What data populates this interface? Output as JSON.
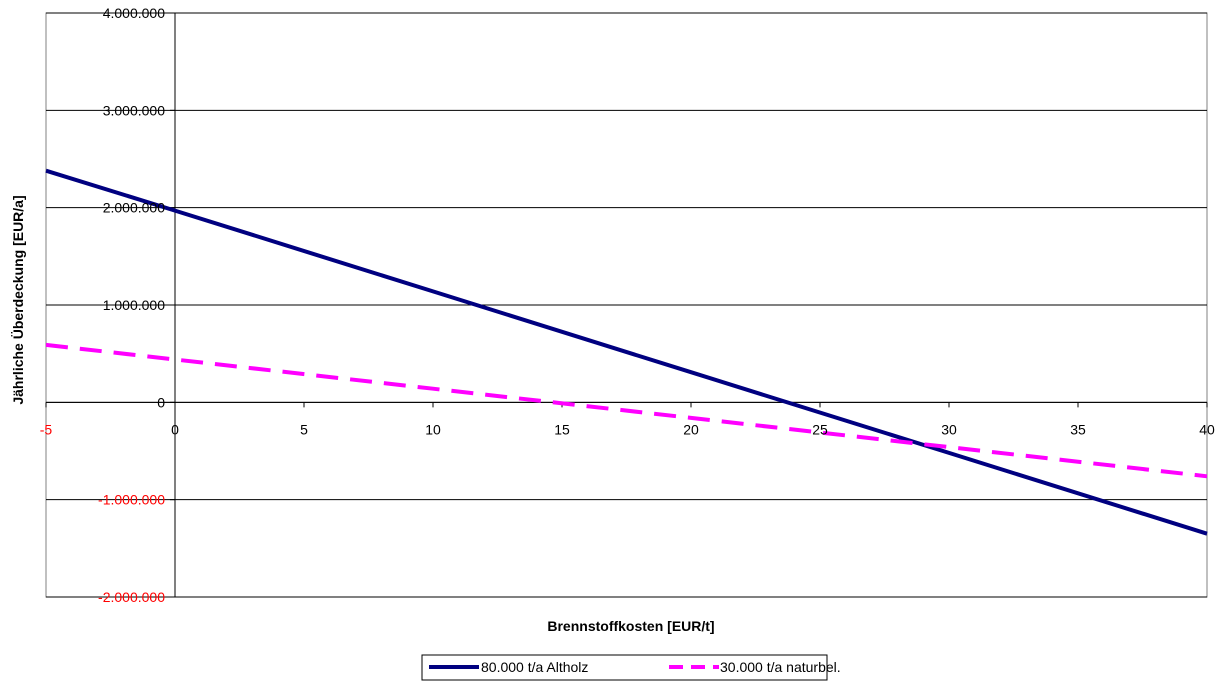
{
  "chart_data": {
    "type": "line",
    "title": "",
    "xlabel": "Brennstoffkosten [EUR/t]",
    "ylabel": "Jährliche Überdeckung [EUR/a]",
    "xlim": [
      -5,
      40
    ],
    "ylim": [
      -2000000,
      4000000
    ],
    "x_ticks": [
      -5,
      0,
      5,
      10,
      15,
      20,
      25,
      30,
      35,
      40
    ],
    "x_tick_labels": [
      "-5",
      "0",
      "5",
      "10",
      "15",
      "20",
      "25",
      "30",
      "35",
      "40"
    ],
    "y_ticks": [
      4000000,
      3000000,
      2000000,
      1000000,
      0,
      -1000000,
      -2000000
    ],
    "y_tick_labels": [
      "4.000.000",
      "3.000.000",
      "2.000.000",
      "1.000.000",
      "0",
      "-1.000.000",
      "-2.000.000"
    ],
    "grid": "horizontal",
    "legend_position": "bottom",
    "colors": {
      "negative_tick": "#ff0000",
      "grid": "#000000",
      "background": "#ffffff"
    },
    "series": [
      {
        "name": "80.000 t/a Altholz",
        "color": "#000080",
        "style": "solid",
        "x": [
          -5,
          0,
          10,
          20,
          30,
          40
        ],
        "y": [
          2380000,
          1970000,
          1140000,
          310000,
          -520000,
          -1350000
        ]
      },
      {
        "name": "30.000 t/a naturbel.",
        "color": "#ff00ff",
        "style": "dashed",
        "x": [
          -5,
          0,
          10,
          20,
          30,
          40
        ],
        "y": [
          590000,
          440000,
          140000,
          -160000,
          -460000,
          -760000
        ]
      }
    ]
  }
}
